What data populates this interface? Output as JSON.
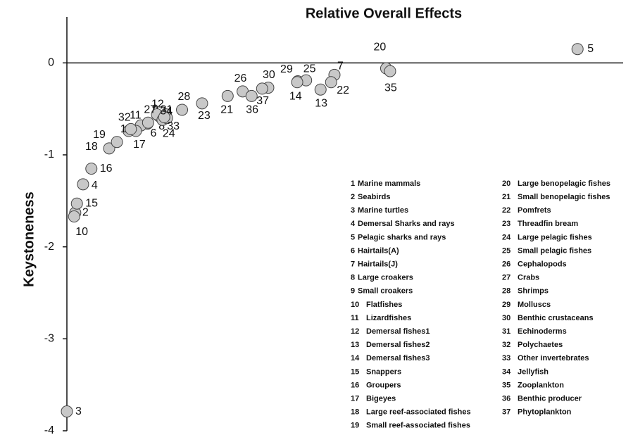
{
  "chart_data": {
    "type": "scatter",
    "title": "Relative Overall Effects",
    "y_label": "Keystoneness",
    "labels": [
      "1",
      "2",
      "3",
      "4",
      "5",
      "6",
      "7",
      "8",
      "9",
      "10",
      "11",
      "12",
      "13",
      "14",
      "15",
      "16",
      "17",
      "18",
      "19",
      "20",
      "21",
      "22",
      "23",
      "24",
      "25",
      "26",
      "27",
      "28",
      "29",
      "30",
      "31",
      "32",
      "33",
      "34",
      "35",
      "36",
      "37"
    ],
    "x": [
      0.111,
      0.015,
      0,
      0.029,
      0.918,
      0.145,
      0.481,
      0.17,
      0.166,
      0.013,
      0.133,
      0.162,
      0.456,
      0.415,
      0.018,
      0.044,
      0.124,
      0.076,
      0.09,
      0.574,
      0.289,
      0.475,
      0.243,
      0.172,
      0.43,
      0.316,
      0.146,
      0.207,
      0.414,
      0.362,
      0.178,
      0.115,
      0.18,
      0.175,
      0.581,
      0.332,
      0.351
    ],
    "y": [
      -0.74,
      -1.63,
      -3.79,
      -1.32,
      0.15,
      -0.66,
      -0.13,
      -0.6,
      -0.58,
      -1.67,
      -0.68,
      -0.56,
      -0.29,
      -0.2,
      -1.53,
      -1.15,
      -0.74,
      -0.93,
      -0.86,
      -0.06,
      -0.36,
      -0.21,
      -0.44,
      -0.62,
      -0.19,
      -0.31,
      -0.65,
      -0.51,
      -0.21,
      -0.27,
      -0.56,
      -0.72,
      -0.6,
      -0.59,
      -0.09,
      -0.36,
      -0.28
    ],
    "color": "#c8c8c8",
    "xlim": [
      0,
      1
    ],
    "ylim": [
      -4,
      0.5
    ],
    "yticks": [
      0,
      -1,
      -2,
      -3,
      -4
    ],
    "legend": [
      {
        "id": "1",
        "name": "Marine mammals"
      },
      {
        "id": "2",
        "name": "Seabirds"
      },
      {
        "id": "3",
        "name": "Marine turtles"
      },
      {
        "id": "4",
        "name": "Demersal Sharks and rays"
      },
      {
        "id": "5",
        "name": "Pelagic sharks and rays"
      },
      {
        "id": "6",
        "name": "Hairtails(A)"
      },
      {
        "id": "7",
        "name": "Hairtails(J)"
      },
      {
        "id": "8",
        "name": "Large croakers"
      },
      {
        "id": "9",
        "name": "Small croakers"
      },
      {
        "id": "10",
        "name": "Flatfishes"
      },
      {
        "id": "11",
        "name": "Lizardfishes"
      },
      {
        "id": "12",
        "name": "Demersal fishes1"
      },
      {
        "id": "13",
        "name": "Demersal fishes2"
      },
      {
        "id": "14",
        "name": "Demersal fishes3"
      },
      {
        "id": "15",
        "name": "Snappers"
      },
      {
        "id": "16",
        "name": "Groupers"
      },
      {
        "id": "17",
        "name": "Bigeyes"
      },
      {
        "id": "18",
        "name": "Large reef-associated fishes"
      },
      {
        "id": "19",
        "name": "Small reef-associated fishes"
      },
      {
        "id": "20",
        "name": "Large benopelagic fishes"
      },
      {
        "id": "21",
        "name": "Small benopelagic fishes"
      },
      {
        "id": "22",
        "name": "Pomfrets"
      },
      {
        "id": "23",
        "name": "Threadfin bream"
      },
      {
        "id": "24",
        "name": "Large pelagic fishes"
      },
      {
        "id": "25",
        "name": "Small pelagic fishes"
      },
      {
        "id": "26",
        "name": "Cephalopods"
      },
      {
        "id": "27",
        "name": "Crabs"
      },
      {
        "id": "28",
        "name": "Shrimps"
      },
      {
        "id": "29",
        "name": "Molluscs"
      },
      {
        "id": "30",
        "name": "Benthic crustaceans"
      },
      {
        "id": "31",
        "name": "Echinoderms"
      },
      {
        "id": "32",
        "name": "Polychaetes"
      },
      {
        "id": "33",
        "name": "Other invertebrates"
      },
      {
        "id": "34",
        "name": "Jellyfish"
      },
      {
        "id": "35",
        "name": "Zooplankton"
      },
      {
        "id": "36",
        "name": "Benthic producer"
      },
      {
        "id": "37",
        "name": "Phytoplankton"
      }
    ]
  }
}
